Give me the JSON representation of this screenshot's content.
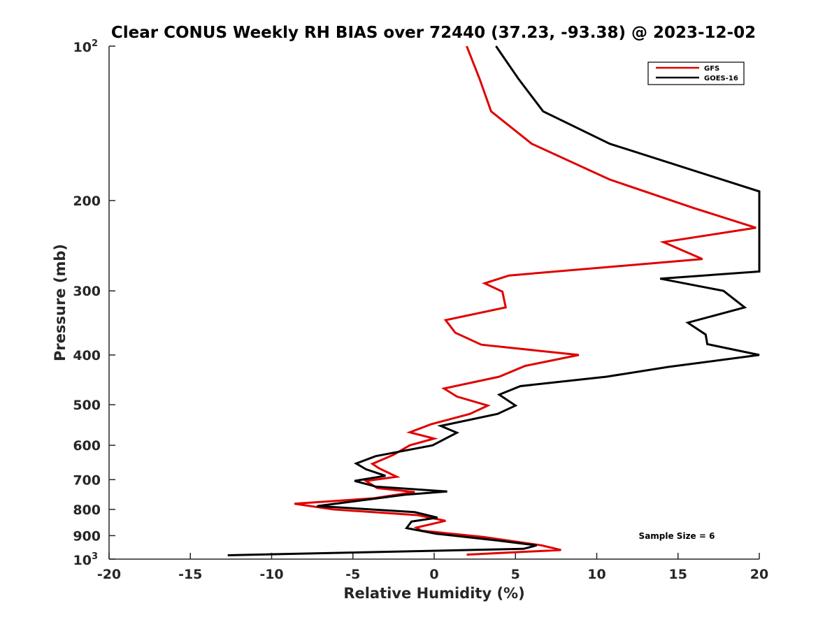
{
  "chart_data": {
    "type": "line",
    "title": "Clear CONUS Weekly RH BIAS over 72440 (37.23, -93.38) @ 2023-12-02",
    "xlabel": "Relative Humidity (%)",
    "ylabel": "Pressure (mb)",
    "xlim": [
      -20,
      20
    ],
    "ylim": [
      100,
      1000
    ],
    "y_scale": "log",
    "y_reversed": true,
    "x_ticks": [
      "-20",
      "-15",
      "-10",
      "-5",
      "0",
      "5",
      "10",
      "15",
      "20"
    ],
    "y_ticks": [
      {
        "base": "10",
        "exp": "2",
        "value": 100
      },
      {
        "label": "200",
        "value": 200
      },
      {
        "label": "300",
        "value": 300
      },
      {
        "label": "400",
        "value": 400
      },
      {
        "label": "500",
        "value": 500
      },
      {
        "label": "600",
        "value": 600
      },
      {
        "label": "700",
        "value": 700
      },
      {
        "label": "800",
        "value": 800
      },
      {
        "label": "900",
        "value": 900
      },
      {
        "base": "10",
        "exp": "3",
        "value": 1000
      }
    ],
    "grid": false,
    "legend_position": "top-right",
    "annotation": "Sample Size = 6",
    "series": [
      {
        "name": "GFS",
        "color": "#e00000",
        "points": [
          [
            2.0,
            100
          ],
          [
            2.8,
            116
          ],
          [
            3.5,
            134
          ],
          [
            6.0,
            155
          ],
          [
            10.8,
            182
          ],
          [
            16.0,
            207
          ],
          [
            19.8,
            226
          ],
          [
            14.1,
            241
          ],
          [
            16.5,
            260
          ],
          [
            4.6,
            280
          ],
          [
            3.1,
            290
          ],
          [
            4.2,
            301
          ],
          [
            4.4,
            323
          ],
          [
            0.7,
            342
          ],
          [
            1.3,
            362
          ],
          [
            2.9,
            382
          ],
          [
            8.9,
            400
          ],
          [
            5.6,
            420
          ],
          [
            4.0,
            441
          ],
          [
            0.6,
            465
          ],
          [
            1.4,
            482
          ],
          [
            3.3,
            502
          ],
          [
            2.2,
            521
          ],
          [
            -0.2,
            546
          ],
          [
            -1.5,
            566
          ],
          [
            0.0,
            582
          ],
          [
            -1.5,
            600
          ],
          [
            -2.5,
            626
          ],
          [
            -3.8,
            652
          ],
          [
            -3.4,
            665
          ],
          [
            -2.3,
            691
          ],
          [
            -4.2,
            704
          ],
          [
            -3.5,
            727
          ],
          [
            -1.2,
            740
          ],
          [
            -3.7,
            761
          ],
          [
            -8.6,
            780
          ],
          [
            -6.2,
            800
          ],
          [
            -1.0,
            821
          ],
          [
            0.7,
            842
          ],
          [
            -1.1,
            868
          ],
          [
            -0.8,
            880
          ],
          [
            3.0,
            905
          ],
          [
            6.6,
            940
          ],
          [
            7.8,
            960
          ],
          [
            2.0,
            980
          ]
        ]
      },
      {
        "name": "GOES-16",
        "color": "#000000",
        "points": [
          [
            3.8,
            100
          ],
          [
            5.2,
            116
          ],
          [
            6.7,
            134
          ],
          [
            10.8,
            155
          ],
          [
            20.0,
            192
          ],
          [
            20.0,
            275
          ],
          [
            13.9,
            284
          ],
          [
            17.8,
            300
          ],
          [
            19.1,
            323
          ],
          [
            15.6,
            346
          ],
          [
            16.7,
            365
          ],
          [
            16.8,
            381
          ],
          [
            20.0,
            400
          ],
          [
            14.4,
            422
          ],
          [
            10.6,
            441
          ],
          [
            5.3,
            460
          ],
          [
            4.0,
            478
          ],
          [
            5.0,
            502
          ],
          [
            3.9,
            521
          ],
          [
            0.4,
            550
          ],
          [
            1.4,
            567
          ],
          [
            -0.1,
            600
          ],
          [
            -3.6,
            630
          ],
          [
            -4.8,
            651
          ],
          [
            -4.2,
            668
          ],
          [
            -3.0,
            688
          ],
          [
            -4.9,
            704
          ],
          [
            -3.6,
            722
          ],
          [
            0.8,
            738
          ],
          [
            -1.8,
            749
          ],
          [
            -7.2,
            788
          ],
          [
            -1.2,
            810
          ],
          [
            0.2,
            830
          ],
          [
            -1.4,
            845
          ],
          [
            -1.7,
            870
          ],
          [
            0.1,
            892
          ],
          [
            3.9,
            920
          ],
          [
            6.3,
            940
          ],
          [
            5.5,
            955
          ],
          [
            -12.7,
            983
          ]
        ]
      }
    ]
  }
}
